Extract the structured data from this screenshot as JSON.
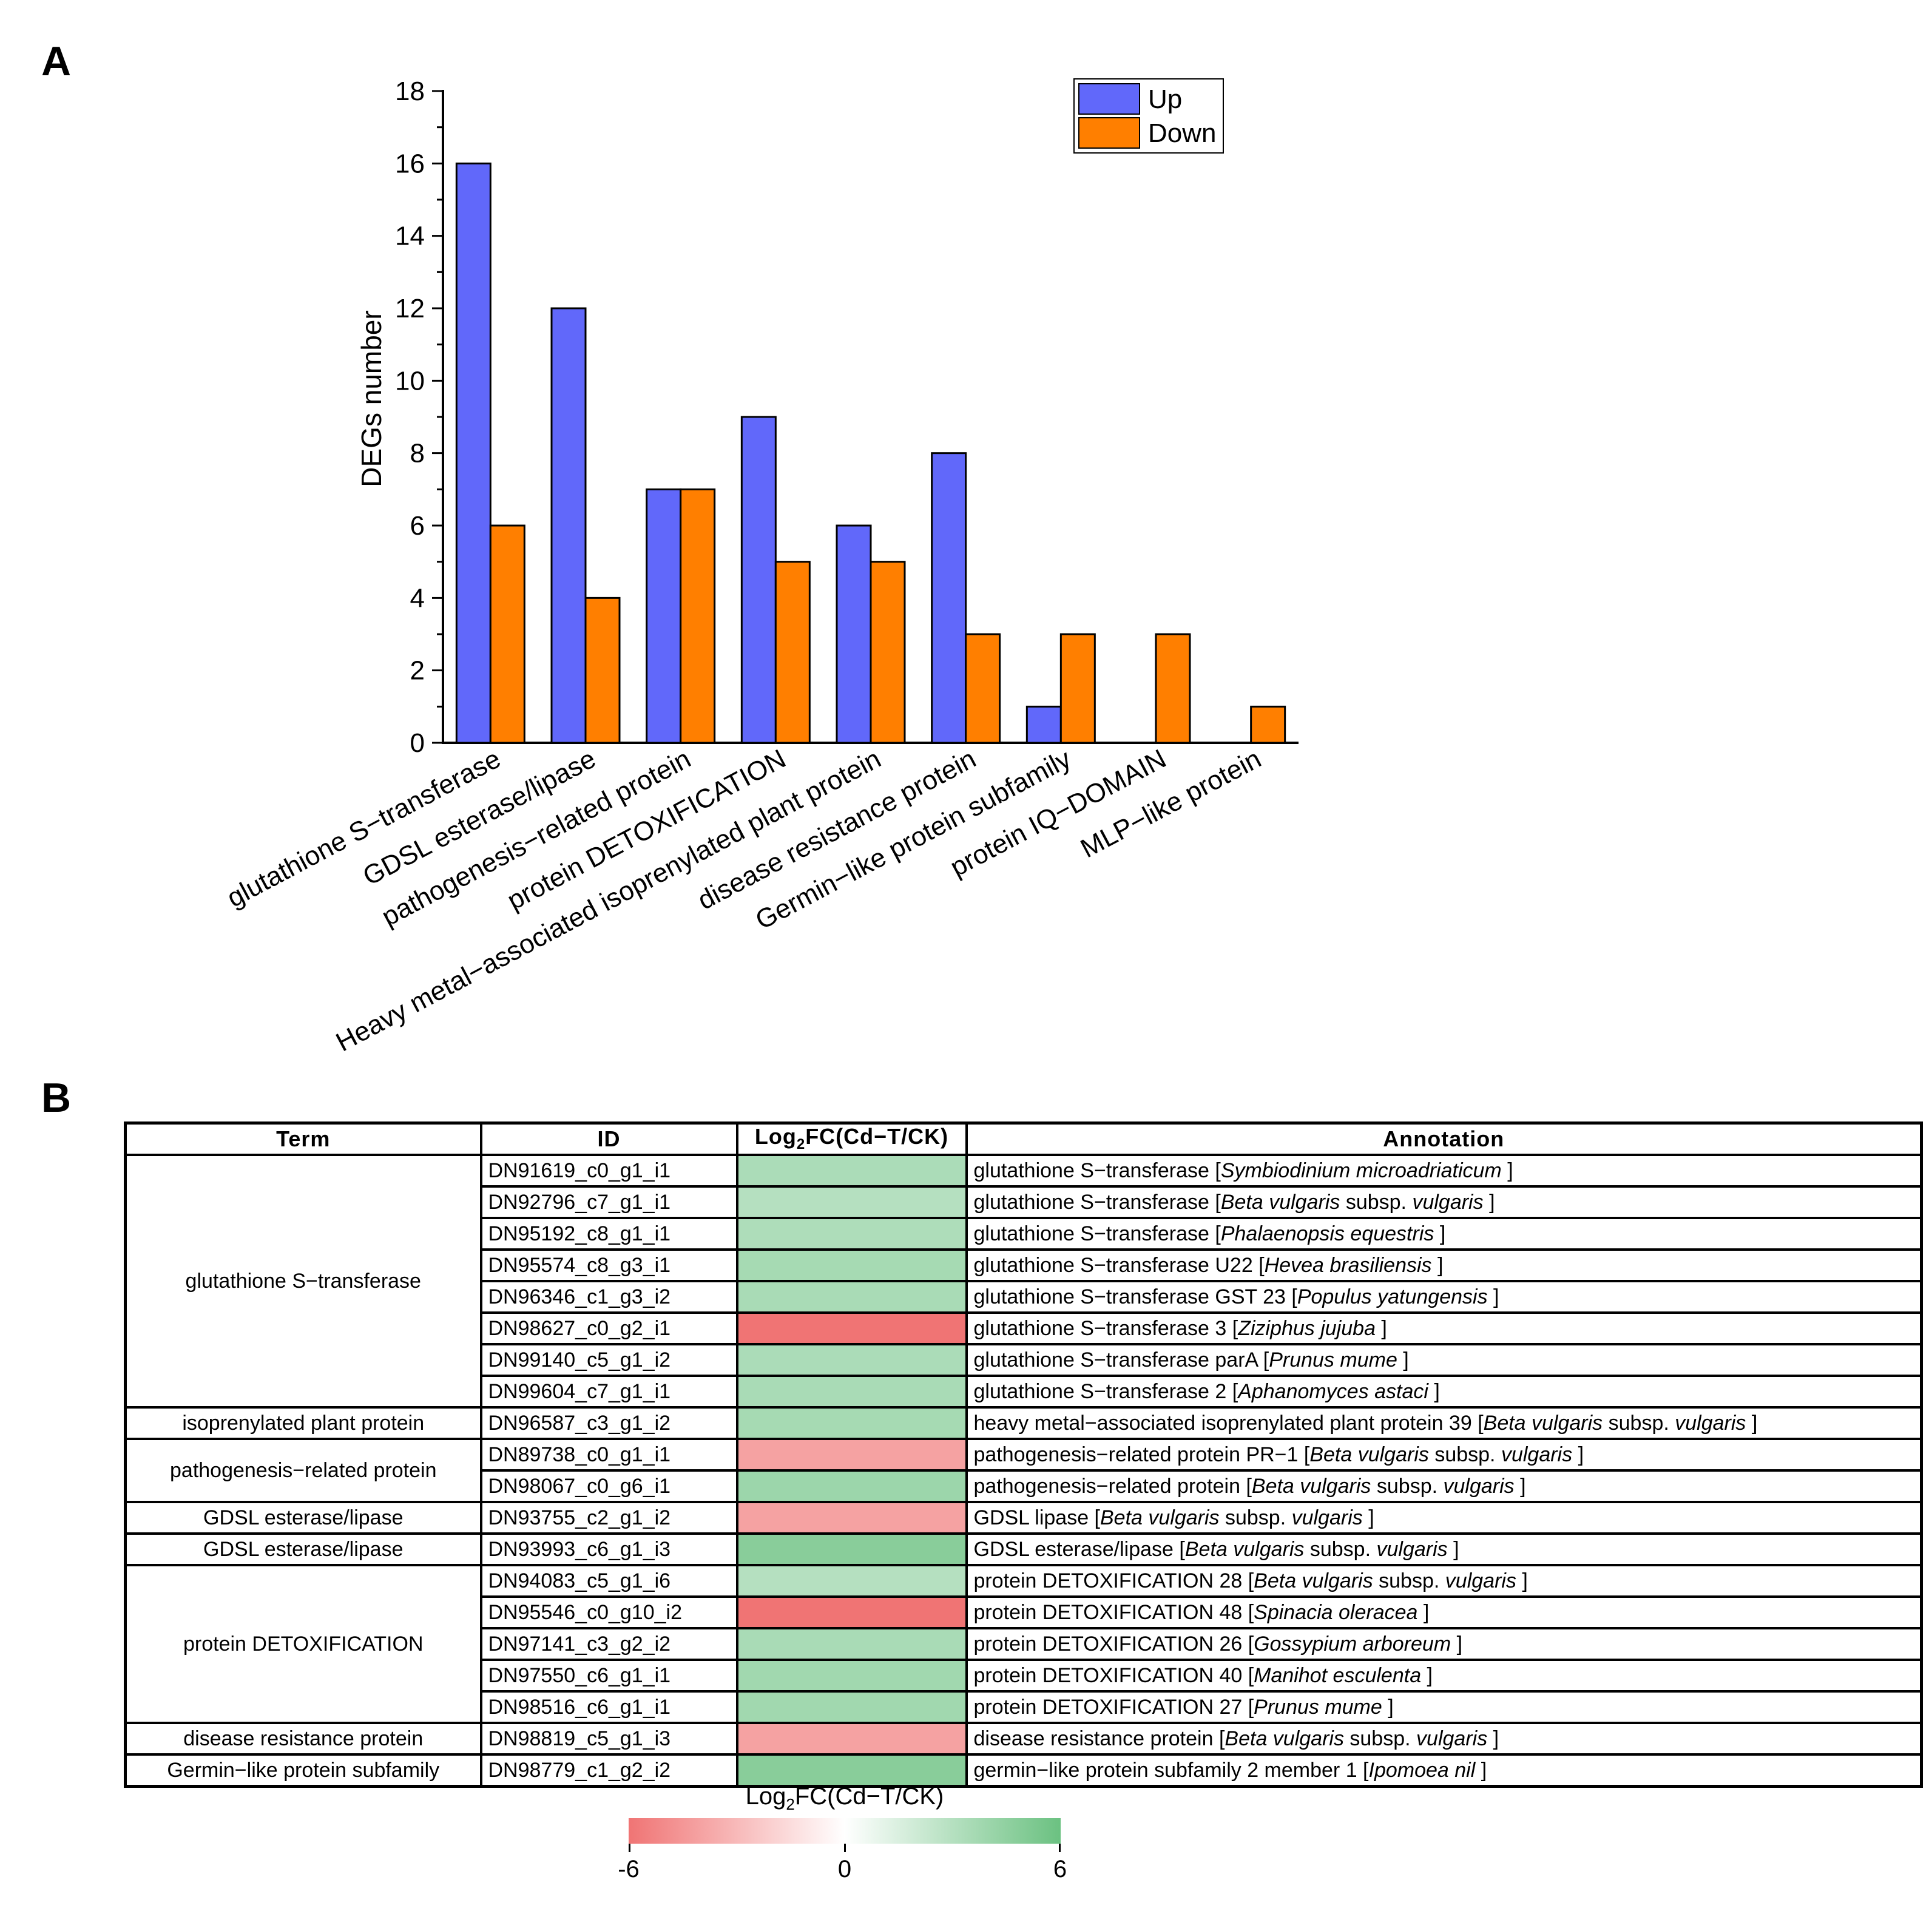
{
  "panel_a_label": "A",
  "panel_b_label": "B",
  "chart_data": {
    "type": "bar",
    "title": "",
    "xlabel": "",
    "ylabel": "DEGs number",
    "ylim": [
      0,
      18
    ],
    "yticks": [
      0,
      2,
      4,
      6,
      8,
      10,
      12,
      14,
      16,
      18
    ],
    "legend_position": "top-right",
    "categories": [
      "glutathione S−transferase",
      "GDSL esterase/lipase",
      "pathogenesis−related protein",
      "protein DETOXIFICATION",
      "Heavy metal−associated isoprenylated plant protein",
      "disease resistance protein",
      "Germin−like protein subfamily",
      "protein IQ−DOMAIN",
      "MLP−like protein"
    ],
    "series": [
      {
        "name": "Up",
        "color": "#6168fa",
        "values": [
          16,
          12,
          7,
          9,
          6,
          8,
          1,
          0,
          0
        ]
      },
      {
        "name": "Down",
        "color": "#ff7f00",
        "values": [
          6,
          4,
          7,
          5,
          5,
          3,
          3,
          3,
          1
        ]
      }
    ]
  },
  "table": {
    "headers": {
      "term": "Term",
      "id": "ID",
      "fc_main": "Log",
      "fc_sub": "2",
      "fc_rest": "FC(Cd−T/CK)",
      "annotation": "Annotation"
    },
    "rows": [
      {
        "term": "glutathione S−transferase",
        "rowspan": 8,
        "id": "DN91619_c0_g1_i1",
        "fc": 3.4,
        "annot": "glutathione S−transferase  [",
        "species": "Symbiodinium microadriaticum",
        "suffix": "]"
      },
      {
        "id": "DN92796_c7_g1_i1",
        "fc": 3.0,
        "annot": "glutathione S−transferase [",
        "species": "Beta vulgaris",
        "mid": " subsp. ",
        "species2": "vulgaris",
        "suffix": "]"
      },
      {
        "id": "DN95192_c8_g1_i1",
        "fc": 3.3,
        "annot": "glutathione S−transferase [",
        "species": "Phalaenopsis equestris",
        "suffix": "]"
      },
      {
        "id": "DN95574_c8_g3_i1",
        "fc": 3.6,
        "annot": "glutathione S−transferase U22 [",
        "species": "Hevea brasiliensis",
        "suffix": "]"
      },
      {
        "id": "DN96346_c1_g3_i2",
        "fc": 3.5,
        "annot": "glutathione S−transferase GST 23 [",
        "species": "Populus yatungensis",
        "suffix": "]"
      },
      {
        "id": "DN98627_c0_g2_i1",
        "fc": -6.0,
        "annot": "glutathione S−transferase 3 [",
        "species": "Ziziphus jujuba",
        "suffix": "]"
      },
      {
        "id": "DN99140_c5_g1_i2",
        "fc": 3.4,
        "annot": "glutathione S−transferase parA [",
        "species": "Prunus mume",
        "suffix": "]"
      },
      {
        "id": "DN99604_c7_g1_i1",
        "fc": 3.5,
        "annot": "glutathione S−transferase 2 [",
        "species": "Aphanomyces astaci",
        "suffix": "]"
      },
      {
        "term": "isoprenylated  plant  protein",
        "rowspan": 1,
        "id": "DN96587_c3_g1_i2",
        "fc": 3.6,
        "annot": "heavy metal−associated isoprenylated plant protein 39 [",
        "species": "Beta vulgaris",
        "mid": " subsp. ",
        "species2": "vulgaris",
        "suffix": "]"
      },
      {
        "term": "pathogenesis−related protein",
        "rowspan": 2,
        "id": "DN89738_c0_g1_i1",
        "fc": -4.0,
        "annot": "pathogenesis−related protein PR−1 [",
        "species": "Beta vulgaris",
        "mid": " subsp. ",
        "species2": "vulgaris",
        "suffix": "]"
      },
      {
        "id": "DN98067_c0_g6_i1",
        "fc": 4.0,
        "annot": "pathogenesis−related protein [",
        "species": "Beta vulgaris",
        "mid": " subsp. ",
        "species2": "vulgaris",
        "suffix": "]"
      },
      {
        "term": "GDSL esterase/lipase",
        "rowspan": 1,
        "id": "DN93755_c2_g1_i2",
        "fc": -4.0,
        "annot": "GDSL lipase [",
        "species": "Beta vulgaris",
        "mid": " subsp. ",
        "species2": "vulgaris",
        "suffix": "]"
      },
      {
        "term": "GDSL esterase/lipase",
        "rowspan": 1,
        "id": "DN93993_c6_g1_i3",
        "fc": 4.8,
        "annot": "GDSL esterase/lipase [",
        "species": "Beta vulgaris",
        "mid": " subsp. ",
        "species2": "vulgaris",
        "suffix": "]"
      },
      {
        "term": "protein DETOXIFICATION",
        "rowspan": 5,
        "id": "DN94083_c5_g1_i6",
        "fc": 3.0,
        "annot": "protein DETOXIFICATION 28 [",
        "species": "Beta vulgaris",
        "mid": " subsp. ",
        "species2": "vulgaris",
        "suffix": "]"
      },
      {
        "id": "DN95546_c0_g10_i2",
        "fc": -6.0,
        "annot": "protein DETOXIFICATION 48 [",
        "species": "Spinacia oleracea",
        "suffix": "]"
      },
      {
        "id": "DN97141_c3_g2_i2",
        "fc": 3.5,
        "annot": "protein DETOXIFICATION 26 [",
        "species": "Gossypium arboreum",
        "suffix": "]"
      },
      {
        "id": "DN97550_c6_g1_i1",
        "fc": 3.8,
        "annot": "protein DETOXIFICATION 40 [",
        "species": "Manihot esculenta",
        "suffix": "]"
      },
      {
        "id": "DN98516_c6_g1_i1",
        "fc": 3.8,
        "annot": "protein DETOXIFICATION 27 [",
        "species": "Prunus mume",
        "suffix": "]"
      },
      {
        "term": "disease resistance protein",
        "rowspan": 1,
        "id": "DN98819_c5_g1_i3",
        "fc": -4.0,
        "annot": "disease resistance protein [",
        "species": "Beta vulgaris",
        "mid": " subsp. ",
        "species2": "vulgaris",
        "suffix": "]"
      },
      {
        "term": "Germin−like protein subfamily",
        "rowspan": 1,
        "id": "DN98779_c1_g2_i2",
        "fc": 4.8,
        "annot": "germin−like protein subfamily 2 member 1 [",
        "species": "Ipomoea nil",
        "suffix": "]"
      }
    ]
  },
  "colorbar": {
    "title_main": "Log",
    "title_sub": "2",
    "title_rest": "FC(Cd−T/CK)",
    "min": -6,
    "mid": 0,
    "max": 6,
    "min_label": "-6",
    "mid_label": "0",
    "max_label": "6",
    "low_color": "#f07474",
    "mid_color": "#ffffff",
    "high_color": "#6bc181"
  }
}
